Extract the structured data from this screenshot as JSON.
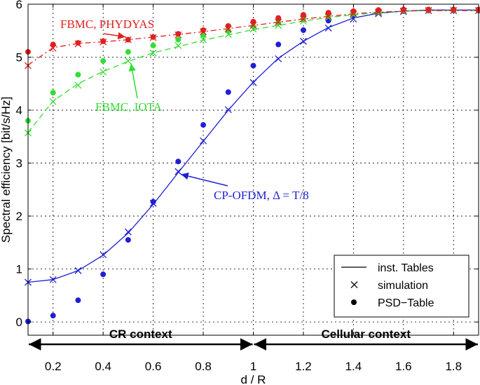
{
  "chart_data": {
    "type": "line",
    "title": "",
    "xlabel": "d / R",
    "ylabel": "Spectral efficiency [bit/s/Hz]",
    "xlim": [
      0.1,
      1.9
    ],
    "ylim": [
      -0.25,
      6
    ],
    "xticks": [
      0.2,
      0.4,
      0.6,
      0.8,
      1,
      1.2,
      1.4,
      1.6,
      1.8
    ],
    "xtick_labels": [
      "0.2",
      "0.4",
      "0.6",
      "0.8",
      "1",
      "1.2",
      "1.4",
      "1.6",
      "1.8"
    ],
    "yticks": [
      0,
      1,
      2,
      3,
      4,
      5,
      6
    ],
    "ytick_labels": [
      "0",
      "1",
      "2",
      "3",
      "4",
      "5",
      "6"
    ],
    "grid": true,
    "x": [
      0.1,
      0.2,
      0.3,
      0.4,
      0.5,
      0.6,
      0.7,
      0.8,
      0.9,
      1.0,
      1.1,
      1.2,
      1.3,
      1.4,
      1.5,
      1.6,
      1.7,
      1.8,
      1.9
    ],
    "series": [
      {
        "name": "CP-OFDM",
        "color": "#1f1fd6",
        "line_style": "solid",
        "inst_tables": [
          0.75,
          0.8,
          0.97,
          1.26,
          1.68,
          2.22,
          2.82,
          3.41,
          4.0,
          4.53,
          4.98,
          5.3,
          5.56,
          5.74,
          5.83,
          5.87,
          5.89,
          5.89,
          5.89
        ],
        "simulation": [
          0.75,
          0.8,
          0.97,
          1.27,
          1.7,
          2.24,
          2.84,
          3.42,
          4.01,
          4.52,
          4.97,
          5.3,
          5.55,
          5.72,
          5.82,
          5.86,
          5.88,
          5.88,
          5.88
        ],
        "psd_table": [
          0.01,
          0.12,
          0.41,
          0.9,
          1.55,
          2.27,
          3.03,
          3.72,
          4.34,
          4.84,
          5.24,
          5.51,
          5.69,
          5.8,
          5.85,
          5.87,
          5.88,
          5.88,
          5.88
        ]
      },
      {
        "name": "FBMC, IOTA",
        "color": "#33dd33",
        "line_style": "dashed",
        "inst_tables": [
          3.58,
          4.17,
          4.5,
          4.73,
          4.92,
          5.08,
          5.2,
          5.32,
          5.42,
          5.52,
          5.6,
          5.68,
          5.75,
          5.8,
          5.84,
          5.87,
          5.88,
          5.88,
          5.88
        ],
        "simulation": [
          3.57,
          4.16,
          4.47,
          4.72,
          4.93,
          5.08,
          5.22,
          5.33,
          5.43,
          5.53,
          5.6,
          5.68,
          5.75,
          5.8,
          5.84,
          5.87,
          5.88,
          5.88,
          5.88
        ],
        "psd_table": [
          3.8,
          4.33,
          4.67,
          4.93,
          5.1,
          5.22,
          5.33,
          5.42,
          5.5,
          5.58,
          5.65,
          5.72,
          5.78,
          5.83,
          5.86,
          5.88,
          5.89,
          5.89,
          5.89
        ]
      },
      {
        "name": "FBMC, PHYDYAS",
        "color": "#e02020",
        "line_style": "dashdot",
        "inst_tables": [
          4.85,
          5.18,
          5.26,
          5.29,
          5.33,
          5.38,
          5.43,
          5.48,
          5.54,
          5.6,
          5.66,
          5.72,
          5.77,
          5.82,
          5.85,
          5.87,
          5.88,
          5.88,
          5.88
        ],
        "simulation": [
          4.84,
          5.17,
          5.25,
          5.29,
          5.33,
          5.37,
          5.42,
          5.48,
          5.53,
          5.6,
          5.66,
          5.72,
          5.77,
          5.82,
          5.85,
          5.87,
          5.88,
          5.88,
          5.88
        ],
        "psd_table": [
          5.1,
          5.24,
          5.27,
          5.3,
          5.33,
          5.38,
          5.44,
          5.51,
          5.59,
          5.67,
          5.74,
          5.8,
          5.84,
          5.87,
          5.89,
          5.9,
          5.9,
          5.9,
          5.9
        ]
      }
    ],
    "annotations": [
      {
        "text": "FBMC, PHYDYAS",
        "color": "#e02020",
        "point_to": [
          0.5,
          5.33
        ]
      },
      {
        "text": "FBMC, IOTA",
        "color": "#33dd33",
        "point_to": [
          0.5,
          4.93
        ]
      },
      {
        "text": "CP-OFDM, Δ = T/8",
        "color": "#1f1fd6",
        "point_to": [
          0.7,
          2.84
        ]
      }
    ],
    "context_arrows": [
      {
        "label": "CR context",
        "from": 0.1,
        "to": 1.0
      },
      {
        "label": "Cellular context",
        "from": 1.0,
        "to": 1.9
      }
    ],
    "legend": {
      "placement": "bottom-right",
      "entries": [
        "inst. Tables",
        "simulation",
        "PSD−Table"
      ]
    }
  }
}
